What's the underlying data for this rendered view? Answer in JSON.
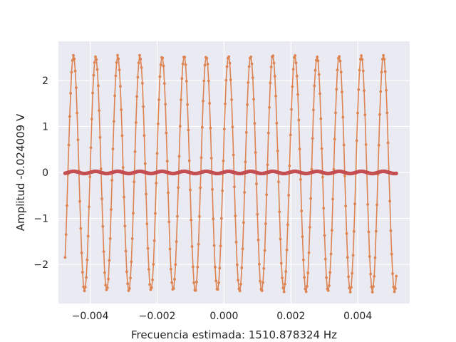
{
  "chart_data": {
    "type": "line",
    "title": "",
    "xlabel": "Frecuencia estimada: 1510.878324 Hz",
    "ylabel": "Amplitud -0.024009 V",
    "xlim": [
      -0.00495,
      0.00555
    ],
    "ylim": [
      -2.85,
      2.85
    ],
    "grid": true,
    "x_ticks": [
      -0.004,
      -0.002,
      0.0,
      0.002,
      0.004
    ],
    "x_tick_labels": [
      "−0.004",
      "−0.002",
      "0.000",
      "0.002",
      "0.004"
    ],
    "y_ticks": [
      -2,
      -1,
      0,
      1,
      2
    ],
    "y_tick_labels": [
      "−2",
      "−1",
      "0",
      "1",
      "2"
    ],
    "series": [
      {
        "kind": "sine",
        "x_start": -0.00475,
        "x_end": 0.00515,
        "amplitude": 2.55,
        "frequency": 1510.878324,
        "offset": -0.024,
        "phase_peak_x": -0.0045,
        "noise": 0.06,
        "color": "#dd8452",
        "line_color": "#4c72b0",
        "marker": "dot"
      },
      {
        "kind": "sine",
        "x_start": -0.00475,
        "x_end": 0.00515,
        "amplitude": 0.024,
        "frequency": 1510.878324,
        "offset": 0.0,
        "phase_peak_x": -0.0045,
        "noise": 0.0,
        "color": "#c44e52",
        "marker": "dot"
      }
    ],
    "colors": {
      "background": "#eaeaf2",
      "grid": "#ffffff",
      "text": "#262626"
    }
  }
}
